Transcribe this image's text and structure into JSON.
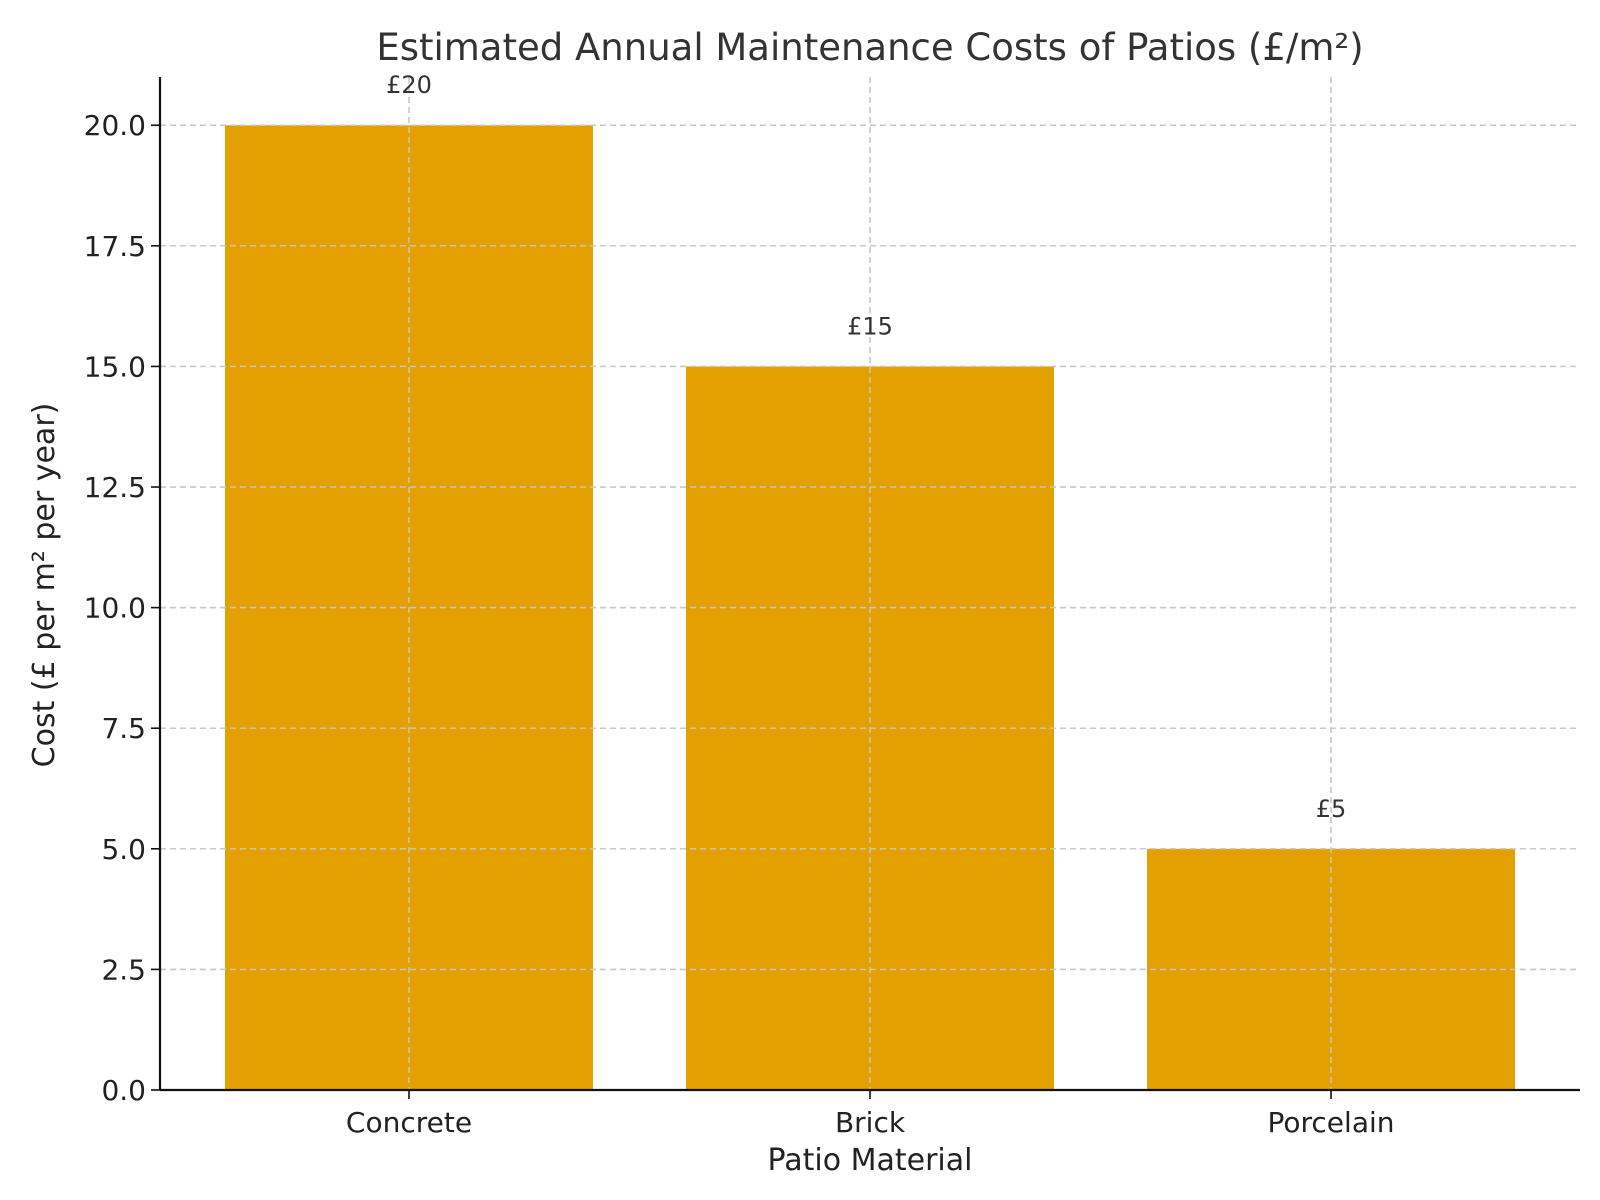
{
  "chart_data": {
    "type": "bar",
    "title": "Estimated Annual Maintenance Costs of Patios (£/m²)",
    "xlabel": "Patio Material",
    "ylabel": "Cost (£ per m² per year)",
    "categories": [
      "Concrete",
      "Brick",
      "Porcelain"
    ],
    "values": [
      20,
      15,
      5
    ],
    "data_labels": [
      "£20",
      "£15",
      "£5"
    ],
    "ylim": [
      0,
      21
    ],
    "yticks": [
      0.0,
      2.5,
      5.0,
      7.5,
      10.0,
      12.5,
      15.0,
      17.5,
      20.0
    ],
    "ytick_labels": [
      "0.0",
      "2.5",
      "5.0",
      "7.5",
      "10.0",
      "12.5",
      "15.0",
      "17.5",
      "20.0"
    ],
    "grid": true,
    "bar_color": "#E3A000"
  }
}
